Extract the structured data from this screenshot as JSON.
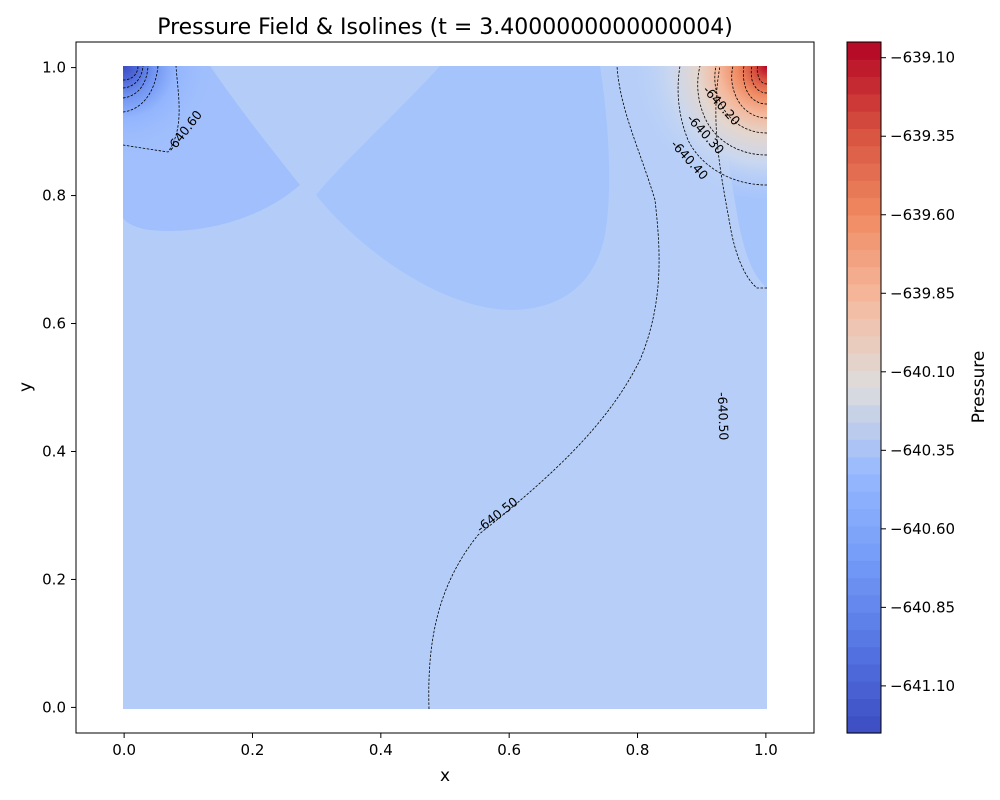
{
  "chart_data": {
    "type": "heatmap",
    "subtype": "filled-contour",
    "title": "Pressure Field & Isolines (t = 3.4000000000000004)",
    "xlabel": "x",
    "ylabel": "y",
    "xlim": [
      -0.075,
      1.075
    ],
    "ylim": [
      -0.04,
      1.04
    ],
    "domain_x": [
      0.0,
      1.0
    ],
    "domain_y": [
      0.0,
      1.0
    ],
    "xticks": [
      "0.0",
      "0.2",
      "0.4",
      "0.6",
      "0.8",
      "1.0"
    ],
    "yticks": [
      "0.0",
      "0.2",
      "0.4",
      "0.6",
      "0.8",
      "1.0"
    ],
    "colormap": "coolwarm",
    "colorbar": {
      "label": "Pressure",
      "vmin": -641.25,
      "vmax": -639.05,
      "ticks": [
        "−639.10",
        "−639.35",
        "−639.60",
        "−639.85",
        "−640.10",
        "−640.35",
        "−640.60",
        "−640.85",
        "−641.10"
      ],
      "tick_values": [
        -639.1,
        -639.35,
        -639.6,
        -639.85,
        -640.1,
        -640.35,
        -640.6,
        -640.85,
        -641.1
      ],
      "levels": 40
    },
    "field_regions": [
      {
        "region": "background",
        "value": -640.55
      },
      {
        "region": "lower-right",
        "value": -640.49
      },
      {
        "region": "center-top lobe",
        "value": -640.58
      },
      {
        "region": "top-left lobe",
        "value": -640.6
      },
      {
        "region": "top-left corner minimum",
        "value": -641.2
      },
      {
        "region": "top-right corner maximum",
        "value": -639.1
      }
    ],
    "contour_labels": [
      {
        "text": "-640.60",
        "x": 0.095,
        "y": 0.9,
        "rotation": -52
      },
      {
        "text": "-640.20",
        "x": 0.93,
        "y": 0.94,
        "rotation": 48
      },
      {
        "text": "-640.30",
        "x": 0.905,
        "y": 0.895,
        "rotation": 48
      },
      {
        "text": "-640.40",
        "x": 0.88,
        "y": 0.855,
        "rotation": 48
      },
      {
        "text": "-640.50",
        "x": 0.582,
        "y": 0.3,
        "rotation": -38
      },
      {
        "text": "-640.50",
        "x": 0.932,
        "y": 0.455,
        "rotation": 88
      }
    ]
  },
  "colors": {
    "background": "#b3cdf8",
    "lower_right": "#b7cff8",
    "lobe": "#a6c4fc",
    "top_left_lobe": "#a0bffc",
    "min": "#3b4cc0",
    "max": "#b40426"
  }
}
